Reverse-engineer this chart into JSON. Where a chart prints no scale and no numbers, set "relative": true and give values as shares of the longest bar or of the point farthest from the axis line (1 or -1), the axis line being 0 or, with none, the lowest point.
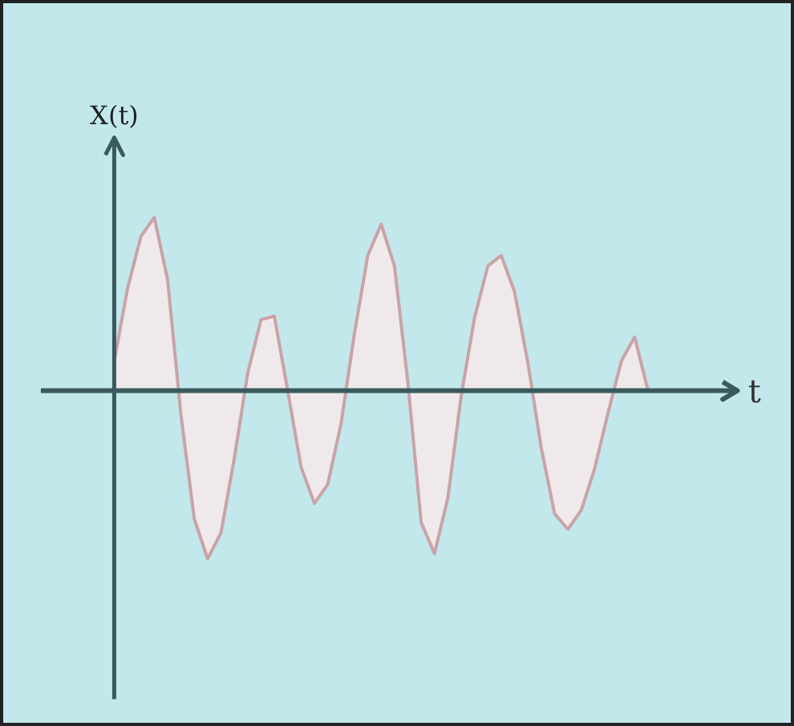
{
  "chart_data": {
    "type": "area",
    "relative": true,
    "xlabel": "t",
    "ylabel": "X(t)",
    "categories": [
      null,
      null,
      null,
      null,
      null,
      null,
      null,
      null,
      null,
      null,
      null,
      null,
      null,
      null,
      null,
      null,
      null,
      null,
      null,
      null,
      null,
      null,
      null,
      null,
      null,
      null,
      null,
      null,
      null,
      null,
      null,
      null,
      null,
      null,
      null,
      null,
      null,
      null,
      null,
      null,
      null
    ],
    "series": [
      {
        "color": "#c9a3a7",
        "values": [
          0.17,
          0.59,
          0.89,
          1.0,
          0.64,
          -0.14,
          -0.74,
          -0.97,
          -0.82,
          -0.39,
          0.1,
          0.41,
          0.43,
          0.0,
          -0.44,
          -0.65,
          -0.54,
          -0.19,
          0.33,
          0.78,
          0.96,
          0.72,
          0.05,
          -0.76,
          -0.94,
          -0.62,
          -0.03,
          0.42,
          0.72,
          0.78,
          0.57,
          0.16,
          -0.33,
          -0.71,
          -0.8,
          -0.69,
          -0.45,
          -0.13,
          0.17,
          0.31,
          0.0
        ]
      }
    ]
  }
}
